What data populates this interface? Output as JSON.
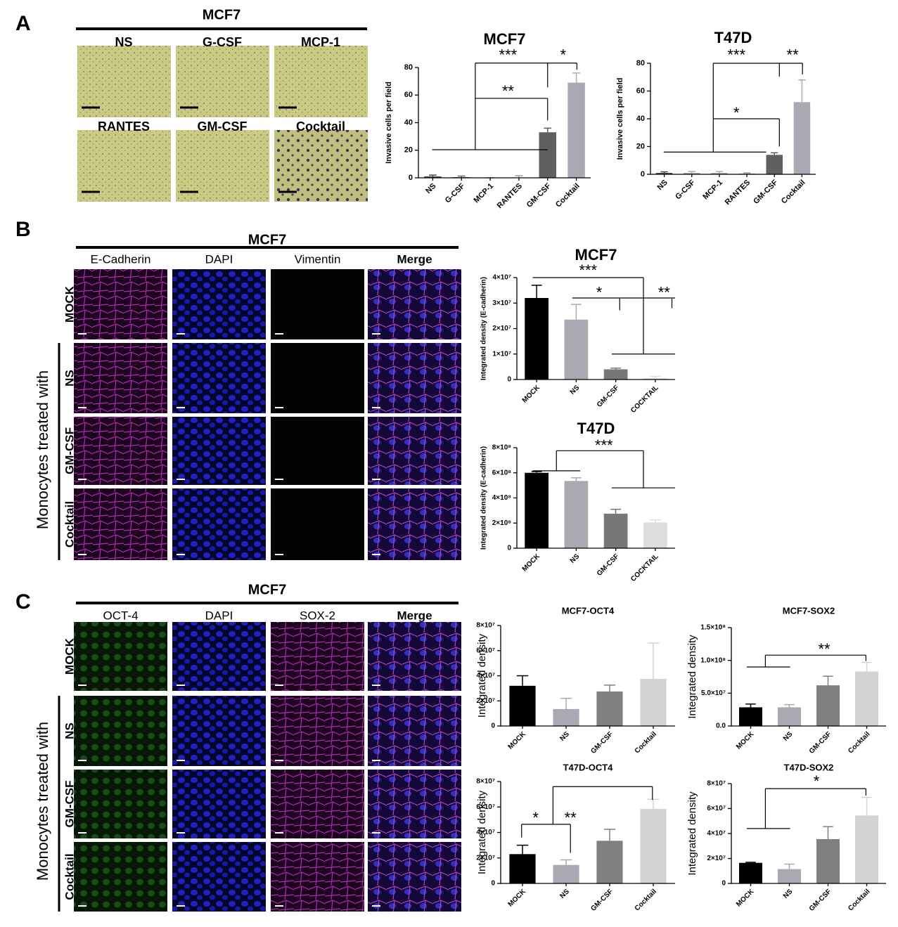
{
  "figure": {
    "panels": [
      {
        "letter": "A",
        "header": "MCF7",
        "images": [
          "NS",
          "G-CSF",
          "MCP-1",
          "RANTES",
          "GM-CSF",
          "Cocktail"
        ]
      },
      {
        "letter": "B",
        "header": "MCF7",
        "columns": [
          "E-Cadherin",
          "DAPI",
          "Vimentin",
          "Merge"
        ],
        "rows": [
          "MOCK",
          "NS",
          "GM-CSF",
          "Cocktail"
        ],
        "group_label": "Monocytes treated with"
      },
      {
        "letter": "C",
        "header": "MCF7",
        "columns": [
          "OCT-4",
          "DAPI",
          "SOX-2",
          "Merge"
        ],
        "rows": [
          "MOCK",
          "NS",
          "GM-CSF",
          "Cocktail"
        ],
        "group_label": "Monocytes treated with"
      }
    ]
  },
  "chart_data": [
    {
      "type": "bar",
      "title": "MCF7",
      "ylabel": "Invasive cells per field",
      "categories": [
        "NS",
        "G-CSF",
        "MCP-1",
        "RANTES",
        "GM-CSF",
        "Cocktail"
      ],
      "values": [
        1,
        0.5,
        0,
        0,
        33,
        69
      ],
      "errors": [
        1,
        0.8,
        0,
        1.5,
        3,
        7
      ],
      "colors": [
        "#444444",
        "#666666",
        "#888888",
        "#999999",
        "#5f5f5f",
        "#a9a9b2"
      ],
      "ylim": [
        0,
        80
      ],
      "yticks": [
        0,
        20,
        40,
        60,
        80
      ],
      "annotations": [
        "***",
        "*",
        "**"
      ]
    },
    {
      "type": "bar",
      "title": "T47D",
      "ylabel": "Invasive cells per field",
      "categories": [
        "NS",
        "G-CSF",
        "MCP-1",
        "RANTES",
        "GM-CSF",
        "Cocktail"
      ],
      "values": [
        1,
        1,
        1,
        0.5,
        14,
        52
      ],
      "errors": [
        0.8,
        1,
        1,
        0.5,
        1.5,
        16
      ],
      "colors": [
        "#444444",
        "#aaaaaa",
        "#aaaaaa",
        "#999999",
        "#5f5f5f",
        "#a9a9b2"
      ],
      "ylim": [
        0,
        80
      ],
      "yticks": [
        0,
        20,
        40,
        60,
        80
      ],
      "annotations": [
        "***",
        "**",
        "*"
      ]
    },
    {
      "type": "bar",
      "title": "MCF7",
      "ylabel": "Integrated density (E-cadherin)",
      "categories": [
        "MOCK",
        "NS",
        "GM-CSF",
        "COCKTAIL"
      ],
      "values": [
        32000000,
        23500000,
        4000000,
        500000
      ],
      "errors": [
        5000000,
        6000000,
        500000,
        700000
      ],
      "colors": [
        "#000000",
        "#a9a9b2",
        "#777777",
        "#dddddd"
      ],
      "ylim": [
        0,
        40000000
      ],
      "yticks": [
        0,
        {
          "value": 10000000,
          "label": "1×10⁷"
        },
        {
          "value": 20000000,
          "label": "2×10⁷"
        },
        {
          "value": 30000000,
          "label": "3×10⁷"
        },
        {
          "value": 40000000,
          "label": "4×10⁷"
        }
      ],
      "annotations": [
        "***",
        "*",
        "**"
      ]
    },
    {
      "type": "bar",
      "title": "T47D",
      "ylabel": "Integrated density (E-cadherin)",
      "categories": [
        "MOCK",
        "NS",
        "GM-CSF",
        "COCKTAIL"
      ],
      "values": [
        600000000,
        535000000,
        275000000,
        205000000
      ],
      "errors": [
        10000000,
        25000000,
        35000000,
        20000000
      ],
      "colors": [
        "#000000",
        "#a9a9b2",
        "#777777",
        "#dddddd"
      ],
      "ylim": [
        0,
        800000000
      ],
      "yticks": [
        0,
        {
          "value": 200000000,
          "label": "2×10⁸"
        },
        {
          "value": 400000000,
          "label": "4×10⁸"
        },
        {
          "value": 600000000,
          "label": "6×10⁸"
        },
        {
          "value": 800000000,
          "label": "8×10⁸"
        }
      ],
      "annotations": [
        "***"
      ]
    },
    {
      "type": "bar",
      "title": "MCF7-OCT4",
      "ylabel": "Integrated density",
      "categories": [
        "MOCK",
        "NS",
        "GM-CSF",
        "Cocktail"
      ],
      "values": [
        32000000,
        13500000,
        27500000,
        37500000
      ],
      "errors": [
        8000000,
        8500000,
        5000000,
        28500000
      ],
      "colors": [
        "#000000",
        "#a9a9b2",
        "#808080",
        "#d3d3d3"
      ],
      "ylim": [
        0,
        80000000
      ],
      "yticks": [
        0,
        {
          "value": 20000000,
          "label": "2×10⁷"
        },
        {
          "value": 40000000,
          "label": "4×10⁷"
        },
        {
          "value": 60000000,
          "label": "6×10⁷"
        },
        {
          "value": 80000000,
          "label": "8×10⁷"
        }
      ],
      "annotations": []
    },
    {
      "type": "bar",
      "title": "MCF7-SOX2",
      "ylabel": "Integrated density",
      "categories": [
        "MOCK",
        "NS",
        "GM-CSF",
        "Cocktail"
      ],
      "values": [
        28500000,
        28500000,
        62000000,
        83000000
      ],
      "errors": [
        5000000,
        4000000,
        14000000,
        14000000
      ],
      "colors": [
        "#000000",
        "#a9a9b2",
        "#808080",
        "#d3d3d3"
      ],
      "ylim": [
        0,
        150000000
      ],
      "yticks": [
        {
          "value": 0,
          "label": "0.0"
        },
        {
          "value": 50000000,
          "label": "5.0×10⁷"
        },
        {
          "value": 100000000,
          "label": "1.0×10⁸"
        },
        {
          "value": 150000000,
          "label": "1.5×10⁸"
        }
      ],
      "annotations": [
        "**"
      ]
    },
    {
      "type": "bar",
      "title": "T47D-OCT4",
      "ylabel": "Integrated density",
      "categories": [
        "MOCK",
        "NS",
        "GM-CSF",
        "Cocktail"
      ],
      "values": [
        23000000,
        14500000,
        33500000,
        58500000
      ],
      "errors": [
        7000000,
        4000000,
        9000000,
        7500000
      ],
      "colors": [
        "#000000",
        "#a9a9b2",
        "#808080",
        "#d3d3d3"
      ],
      "ylim": [
        0,
        80000000
      ],
      "yticks": [
        0,
        {
          "value": 20000000,
          "label": "2×10⁷"
        },
        {
          "value": 40000000,
          "label": "4×10⁷"
        },
        {
          "value": 60000000,
          "label": "6×10⁷"
        },
        {
          "value": 80000000,
          "label": "8×10⁷"
        }
      ],
      "annotations": [
        "*",
        "**"
      ]
    },
    {
      "type": "bar",
      "title": "T47D-SOX2",
      "ylabel": "Integrated density",
      "categories": [
        "MOCK",
        "NS",
        "GM-CSF",
        "Cocktail"
      ],
      "values": [
        16500000,
        11500000,
        35500000,
        54500000
      ],
      "errors": [
        500000,
        4000000,
        10000000,
        14500000
      ],
      "colors": [
        "#000000",
        "#a9a9b2",
        "#808080",
        "#d3d3d3"
      ],
      "ylim": [
        0,
        80000000
      ],
      "yticks": [
        0,
        {
          "value": 20000000,
          "label": "2×10⁷"
        },
        {
          "value": 40000000,
          "label": "4×10⁷"
        },
        {
          "value": 60000000,
          "label": "6×10⁷"
        },
        {
          "value": 80000000,
          "label": "8×10⁷"
        }
      ],
      "annotations": [
        "*"
      ]
    }
  ]
}
